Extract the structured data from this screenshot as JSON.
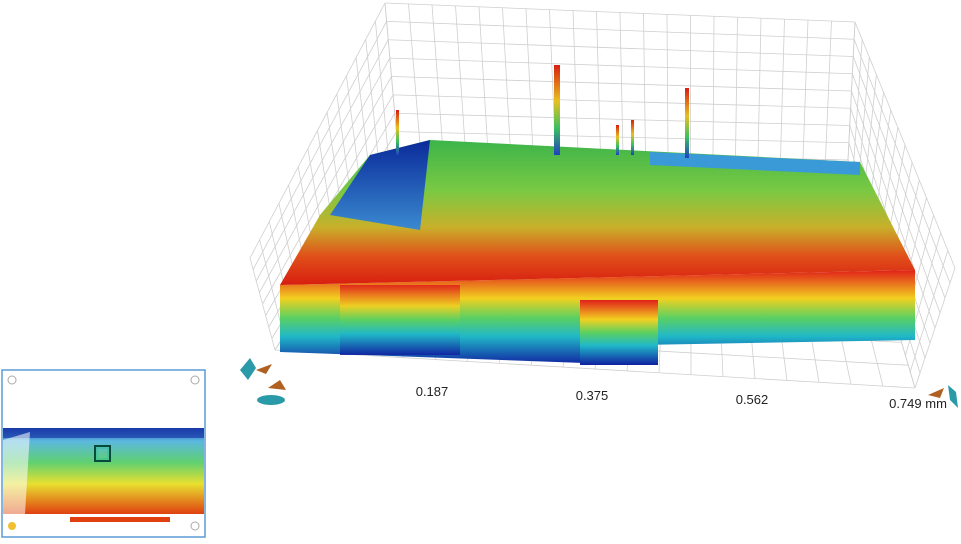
{
  "axis": {
    "labels": [
      "0.187",
      "0.375",
      "0.562",
      "0.749 mm"
    ]
  }
}
